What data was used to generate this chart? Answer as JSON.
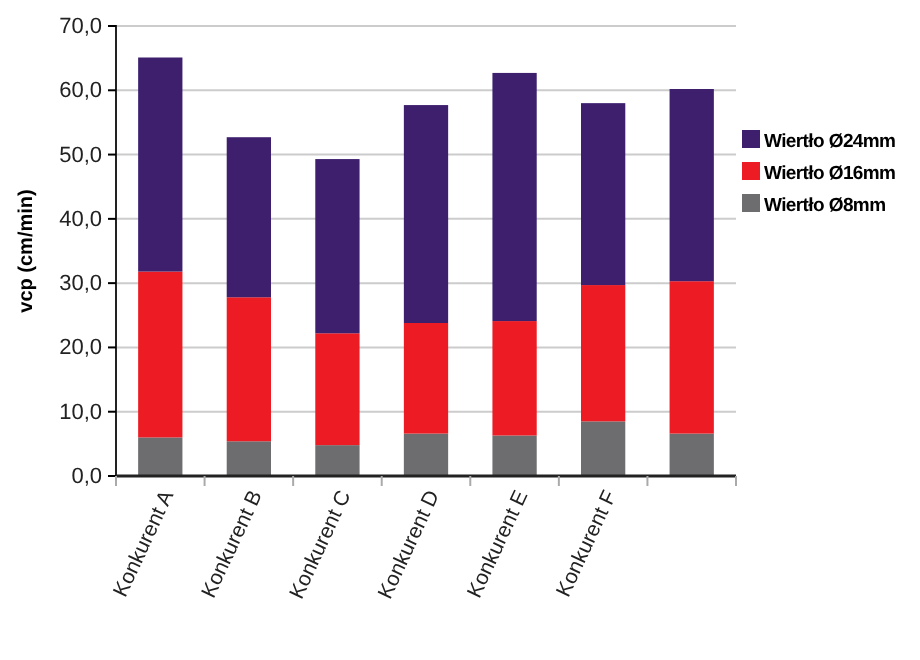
{
  "chart_data": {
    "type": "bar",
    "stacked": true,
    "ylabel": "vcp (cm/min)",
    "categories": [
      "Konkurent A",
      "Konkurent B",
      "Konkurent C",
      "Konkurent D",
      "Konkurent E",
      "Konkurent F",
      null
    ],
    "series": [
      {
        "name": "Wiertło Ø8mm",
        "color": "#6d6d6f",
        "values": [
          6.0,
          5.4,
          4.8,
          6.6,
          6.3,
          8.5,
          6.6
        ]
      },
      {
        "name": "Wiertło Ø16mm",
        "color": "#ed1c24",
        "values": [
          25.8,
          22.4,
          17.4,
          17.2,
          17.8,
          21.2,
          23.7
        ]
      },
      {
        "name": "Wiertło Ø24mm",
        "color": "#3d1f6e",
        "values": [
          33.3,
          24.9,
          27.1,
          33.9,
          38.6,
          28.3,
          29.9
        ]
      }
    ],
    "ylim": [
      0,
      70
    ],
    "yticks": [
      {
        "value": 0,
        "label": "0,0"
      },
      {
        "value": 10,
        "label": "10,0"
      },
      {
        "value": 20,
        "label": "20,0"
      },
      {
        "value": 30,
        "label": "30,0"
      },
      {
        "value": 40,
        "label": "40,0"
      },
      {
        "value": 50,
        "label": "50,0"
      },
      {
        "value": 60,
        "label": "60,0"
      },
      {
        "value": 70,
        "label": "70,0"
      }
    ],
    "grid": "y",
    "legend": "right"
  }
}
